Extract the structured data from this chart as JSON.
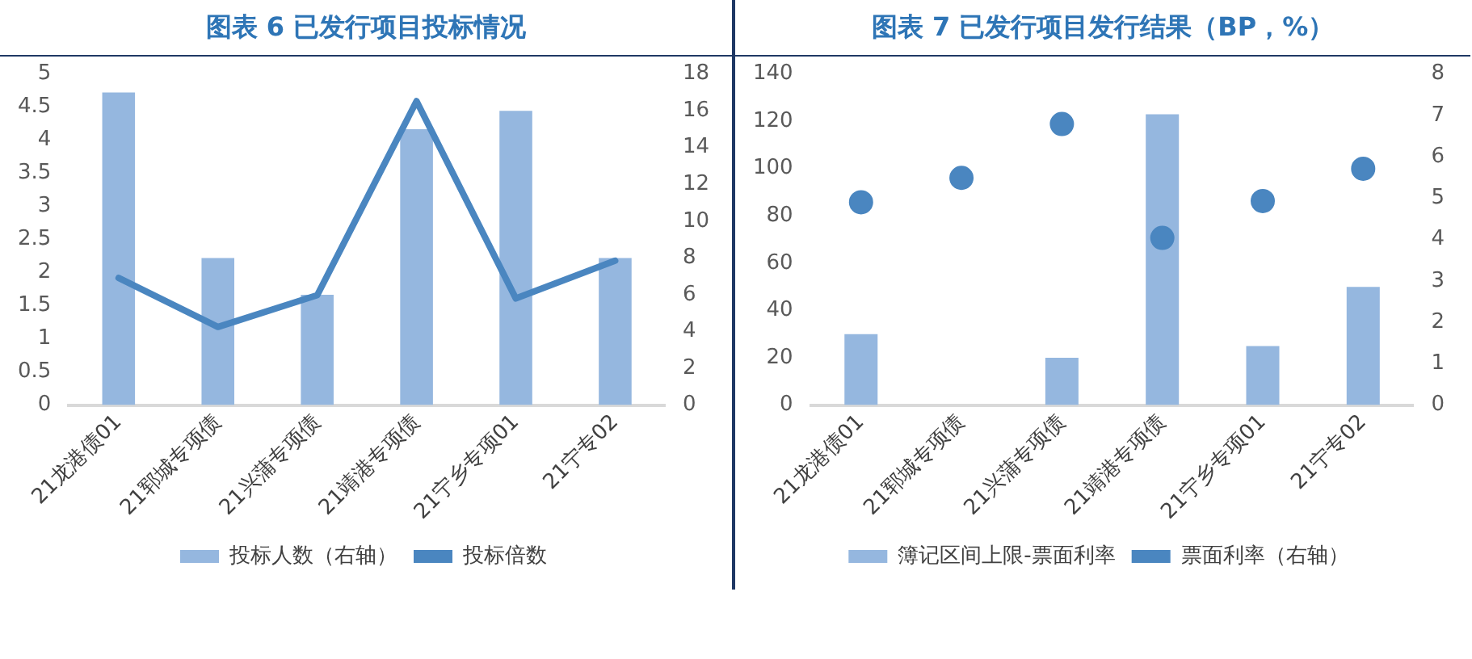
{
  "chart_data": [
    {
      "type": "bar",
      "title": "图表 6 已发行项目投标情况",
      "categories": [
        "21龙港债01",
        "21郓城专项债",
        "21兴蒲专项债",
        "21靖港专项债",
        "21宁乡专项01",
        "21宁专02"
      ],
      "series": [
        {
          "name": "投标人数（右轴）",
          "type": "bar",
          "axis": "y2",
          "color": "#95b7df",
          "values": [
            17,
            8,
            6,
            15,
            16,
            8
          ]
        },
        {
          "name": "投标倍数",
          "type": "line",
          "axis": "y",
          "color": "#4a86c0",
          "values": [
            1.92,
            1.18,
            1.66,
            4.59,
            1.61,
            2.18
          ]
        }
      ],
      "ylim": [
        0,
        5
      ],
      "yticks": [
        0,
        0.5,
        1,
        1.5,
        2,
        2.5,
        3,
        3.5,
        4,
        4.5,
        5
      ],
      "y2lim": [
        0,
        18
      ],
      "y2ticks": [
        0,
        2,
        4,
        6,
        8,
        10,
        12,
        14,
        16,
        18
      ],
      "grid": false,
      "legend": "bottom",
      "marker": "none",
      "line_style": "solid"
    },
    {
      "type": "bar",
      "title": "图表 7 已发行项目发行结果（BP，%）",
      "categories": [
        "21龙港债01",
        "21郓城专项债",
        "21兴蒲专项债",
        "21靖港专项债",
        "21宁乡专项01",
        "21宁专02"
      ],
      "series": [
        {
          "name": "簿记区间上限-票面利率",
          "type": "bar",
          "axis": "y",
          "color": "#95b7df",
          "values": [
            30,
            null,
            20,
            123,
            25,
            50
          ]
        },
        {
          "name": "票面利率（右轴）",
          "type": "scatter",
          "axis": "y2",
          "color": "#4a86c0",
          "values": [
            4.9,
            5.49,
            6.79,
            4.04,
            4.93,
            5.71
          ]
        }
      ],
      "ylim": [
        0,
        140
      ],
      "yticks": [
        0,
        20,
        40,
        60,
        80,
        100,
        120,
        140
      ],
      "y2lim": [
        0,
        8
      ],
      "y2ticks": [
        0,
        1,
        2,
        3,
        4,
        5,
        6,
        7,
        8
      ],
      "grid": false,
      "legend": "bottom",
      "marker": "circle"
    }
  ]
}
